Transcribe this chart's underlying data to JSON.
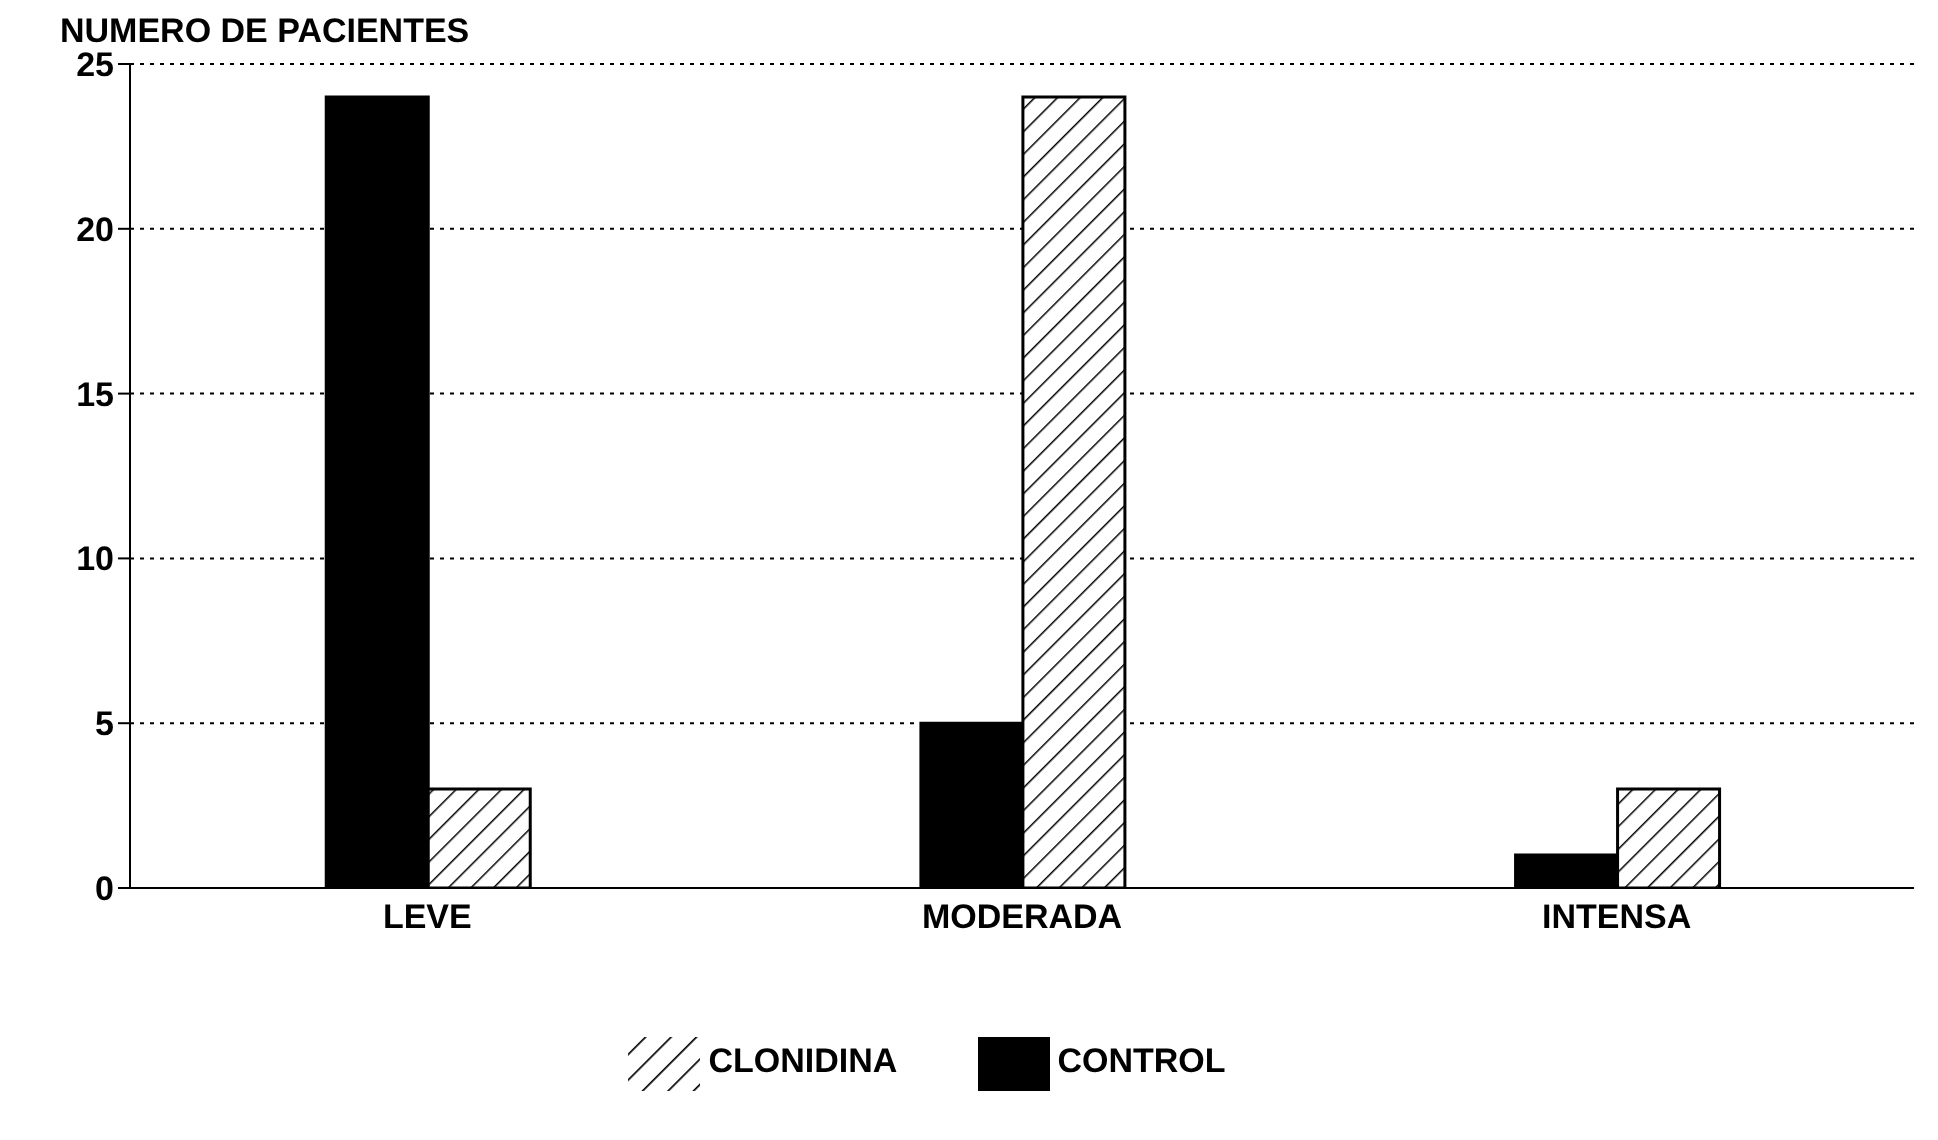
{
  "chart_data": {
    "type": "bar",
    "ylabel": "NUMERO DE PACIENTES",
    "categories": [
      "LEVE",
      "MODERADA",
      "INTENSA"
    ],
    "series": [
      {
        "name": "CONTROL",
        "color": "#000000",
        "values": [
          24,
          5,
          1
        ]
      },
      {
        "name": "CLONIDINA",
        "color": "#000000",
        "values": [
          3,
          24,
          3
        ]
      }
    ],
    "ylim": [
      0,
      25
    ],
    "yticks": [
      0,
      5,
      10,
      15,
      20,
      25
    ],
    "grid": "y",
    "legend": "bottom"
  }
}
